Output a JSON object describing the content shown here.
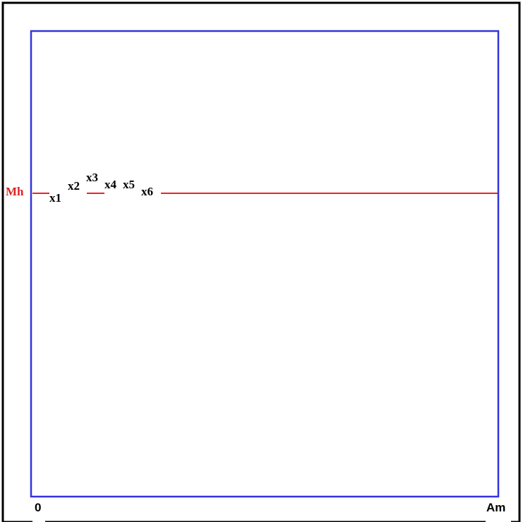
{
  "labels": {
    "y_label": "Mh",
    "x_start": "0",
    "x_end": "Am",
    "points": [
      "x1",
      "x2",
      "x3",
      "x4",
      "x5",
      "x6"
    ]
  },
  "colors": {
    "frame_border": "#000000",
    "box": "#3333dd",
    "line": "#ee2222",
    "y_label": "#dd2222",
    "text": "#000000"
  }
}
